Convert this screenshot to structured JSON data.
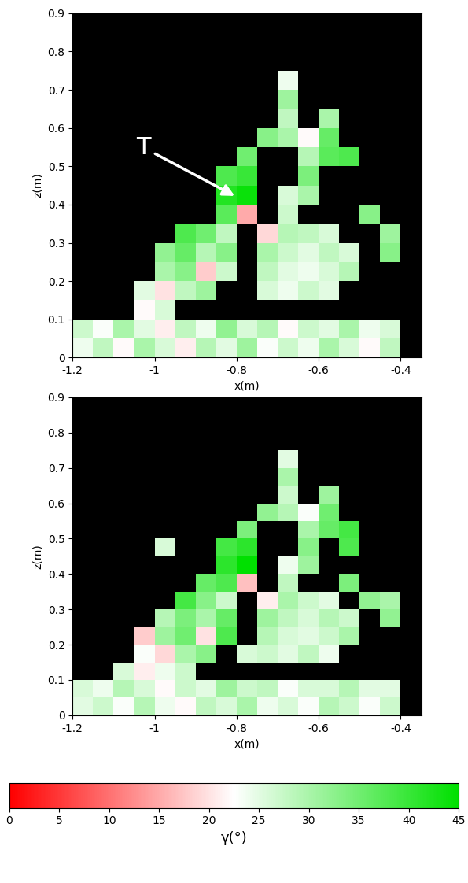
{
  "chart_data": [
    {
      "type": "heatmap",
      "x_label": "x(m)",
      "y_label": "z(m)",
      "xlim": [
        -1.2,
        -0.35
      ],
      "ylim": [
        0,
        0.9
      ],
      "xticks": [
        -1.2,
        -1,
        -0.8,
        -0.6,
        -0.4
      ],
      "yticks": [
        0,
        0.1,
        0.2,
        0.3,
        0.4,
        0.5,
        0.6,
        0.7,
        0.8,
        0.9
      ],
      "x_edges": [
        -1.2,
        -1.15,
        -1.1,
        -1.05,
        -1.0,
        -0.95,
        -0.9,
        -0.85,
        -0.8,
        -0.75,
        -0.7,
        -0.65,
        -0.6,
        -0.55,
        -0.5,
        -0.45,
        -0.4,
        -0.35
      ],
      "y_edges": [
        0,
        0.05,
        0.1,
        0.15,
        0.2,
        0.25,
        0.3,
        0.35,
        0.4,
        0.45,
        0.5,
        0.55,
        0.6,
        0.65,
        0.7,
        0.75,
        0.8,
        0.85,
        0.9
      ],
      "cells": [
        [
          24,
          28,
          22,
          30,
          26,
          21,
          29,
          25,
          31,
          23,
          27,
          24,
          30,
          26,
          22,
          28,
          null
        ],
        [
          27,
          23,
          30,
          25,
          21,
          28,
          24,
          32,
          26,
          29,
          22,
          27,
          25,
          30,
          24,
          26,
          null
        ],
        [
          null,
          null,
          null,
          22,
          26,
          null,
          null,
          null,
          null,
          null,
          null,
          null,
          null,
          null,
          null,
          null,
          null
        ],
        [
          null,
          null,
          null,
          25,
          20,
          28,
          31,
          null,
          null,
          26,
          24,
          27,
          25,
          null,
          null,
          null,
          null
        ],
        [
          null,
          null,
          null,
          null,
          30,
          33,
          18,
          27,
          null,
          28,
          25,
          24,
          26,
          29,
          null,
          null,
          null
        ],
        [
          null,
          null,
          null,
          null,
          32,
          36,
          29,
          33,
          null,
          30,
          27,
          25,
          28,
          26,
          null,
          33,
          null
        ],
        [
          null,
          null,
          null,
          null,
          null,
          38,
          35,
          28,
          null,
          19,
          29,
          28,
          26,
          null,
          null,
          31,
          null
        ],
        [
          null,
          null,
          null,
          null,
          null,
          null,
          null,
          37,
          15,
          null,
          27,
          null,
          null,
          null,
          33,
          null,
          null
        ],
        [
          null,
          null,
          null,
          null,
          null,
          null,
          null,
          42,
          44,
          null,
          26,
          30,
          null,
          null,
          null,
          null,
          null
        ],
        [
          null,
          null,
          null,
          null,
          null,
          null,
          null,
          38,
          40,
          null,
          null,
          34,
          null,
          null,
          null,
          null,
          null
        ],
        [
          null,
          null,
          null,
          null,
          null,
          null,
          null,
          null,
          35,
          null,
          null,
          29,
          37,
          38,
          null,
          null,
          null
        ],
        [
          null,
          null,
          null,
          null,
          null,
          null,
          null,
          null,
          null,
          33,
          30,
          22,
          36,
          null,
          null,
          null,
          null
        ],
        [
          null,
          null,
          null,
          null,
          null,
          null,
          null,
          null,
          null,
          null,
          28,
          null,
          30,
          null,
          null,
          null,
          null
        ],
        [
          null,
          null,
          null,
          null,
          null,
          null,
          null,
          null,
          null,
          null,
          31,
          null,
          null,
          null,
          null,
          null,
          null
        ],
        [
          null,
          null,
          null,
          null,
          null,
          null,
          null,
          null,
          null,
          null,
          24,
          null,
          null,
          null,
          null,
          null,
          null
        ],
        [
          null,
          null,
          null,
          null,
          null,
          null,
          null,
          null,
          null,
          null,
          null,
          null,
          null,
          null,
          null,
          null,
          null
        ],
        [
          null,
          null,
          null,
          null,
          null,
          null,
          null,
          null,
          null,
          null,
          null,
          null,
          null,
          null,
          null,
          null,
          null
        ],
        [
          null,
          null,
          null,
          null,
          null,
          null,
          null,
          null,
          null,
          null,
          null,
          null,
          null,
          null,
          null,
          null,
          null
        ]
      ],
      "annotations": [
        {
          "text": "T",
          "x": -0.8,
          "y": 0.42
        }
      ]
    },
    {
      "type": "heatmap",
      "x_label": "x(m)",
      "y_label": "z(m)",
      "xlim": [
        -1.2,
        -0.35
      ],
      "ylim": [
        0,
        0.9
      ],
      "xticks": [
        -1.2,
        -1,
        -0.8,
        -0.6,
        -0.4
      ],
      "yticks": [
        0,
        0.1,
        0.2,
        0.3,
        0.4,
        0.5,
        0.6,
        0.7,
        0.8,
        0.9
      ],
      "x_edges": [
        -1.2,
        -1.15,
        -1.1,
        -1.05,
        -1.0,
        -0.95,
        -0.9,
        -0.85,
        -0.8,
        -0.75,
        -0.7,
        -0.65,
        -0.6,
        -0.55,
        -0.5,
        -0.45,
        -0.4,
        -0.35
      ],
      "y_edges": [
        0,
        0.05,
        0.1,
        0.15,
        0.2,
        0.25,
        0.3,
        0.35,
        0.4,
        0.45,
        0.5,
        0.55,
        0.6,
        0.65,
        0.7,
        0.75,
        0.8,
        0.85,
        0.9
      ],
      "cells": [
        [
          25,
          27,
          23,
          29,
          24,
          22,
          28,
          26,
          30,
          24,
          26,
          23,
          29,
          27,
          23,
          27,
          null
        ],
        [
          26,
          24,
          29,
          26,
          22,
          27,
          25,
          31,
          27,
          28,
          23,
          26,
          26,
          29,
          25,
          25,
          null
        ],
        [
          null,
          null,
          26,
          21,
          24,
          27,
          null,
          null,
          null,
          null,
          null,
          null,
          null,
          null,
          null,
          null,
          null
        ],
        [
          null,
          null,
          null,
          23,
          19,
          30,
          33,
          null,
          26,
          27,
          25,
          28,
          24,
          null,
          null,
          null,
          null
        ],
        [
          null,
          null,
          null,
          18,
          31,
          35,
          20,
          38,
          null,
          29,
          26,
          25,
          27,
          30,
          null,
          null,
          null
        ],
        [
          null,
          null,
          null,
          null,
          29,
          34,
          30,
          36,
          null,
          31,
          28,
          26,
          29,
          27,
          null,
          32,
          null
        ],
        [
          null,
          null,
          null,
          null,
          null,
          39,
          33,
          27,
          null,
          21,
          30,
          27,
          25,
          null,
          32,
          30,
          null
        ],
        [
          null,
          null,
          null,
          null,
          null,
          null,
          36,
          38,
          17,
          null,
          28,
          null,
          null,
          34,
          null,
          null,
          null
        ],
        [
          null,
          null,
          null,
          null,
          null,
          null,
          null,
          41,
          45,
          null,
          24,
          31,
          null,
          null,
          null,
          null,
          null
        ],
        [
          null,
          null,
          null,
          null,
          26,
          null,
          null,
          39,
          41,
          null,
          null,
          33,
          null,
          38,
          null,
          null,
          null
        ],
        [
          null,
          null,
          null,
          null,
          null,
          null,
          null,
          null,
          34,
          null,
          null,
          30,
          36,
          39,
          null,
          null,
          null
        ],
        [
          null,
          null,
          null,
          null,
          null,
          null,
          null,
          null,
          null,
          32,
          29,
          23,
          35,
          null,
          null,
          null,
          null
        ],
        [
          null,
          null,
          null,
          null,
          null,
          null,
          null,
          null,
          null,
          null,
          27,
          null,
          31,
          null,
          null,
          null,
          null
        ],
        [
          null,
          null,
          null,
          null,
          null,
          null,
          null,
          null,
          null,
          null,
          30,
          null,
          null,
          null,
          null,
          null,
          null
        ],
        [
          null,
          null,
          null,
          null,
          null,
          null,
          null,
          null,
          null,
          null,
          25,
          null,
          null,
          null,
          null,
          null,
          null
        ],
        [
          null,
          null,
          null,
          null,
          null,
          null,
          null,
          null,
          null,
          null,
          null,
          null,
          null,
          null,
          null,
          null,
          null
        ],
        [
          null,
          null,
          null,
          null,
          null,
          null,
          null,
          null,
          null,
          null,
          null,
          null,
          null,
          null,
          null,
          null,
          null
        ],
        [
          null,
          null,
          null,
          null,
          null,
          null,
          null,
          null,
          null,
          null,
          null,
          null,
          null,
          null,
          null,
          null,
          null
        ]
      ]
    }
  ],
  "colorbar": {
    "label": "γ(°)",
    "range": [
      0,
      45
    ],
    "ticks": [
      0,
      5,
      10,
      15,
      20,
      25,
      30,
      35,
      40,
      45
    ],
    "colors": [
      "#ff0000",
      "#ffffff",
      "#00e000"
    ]
  }
}
